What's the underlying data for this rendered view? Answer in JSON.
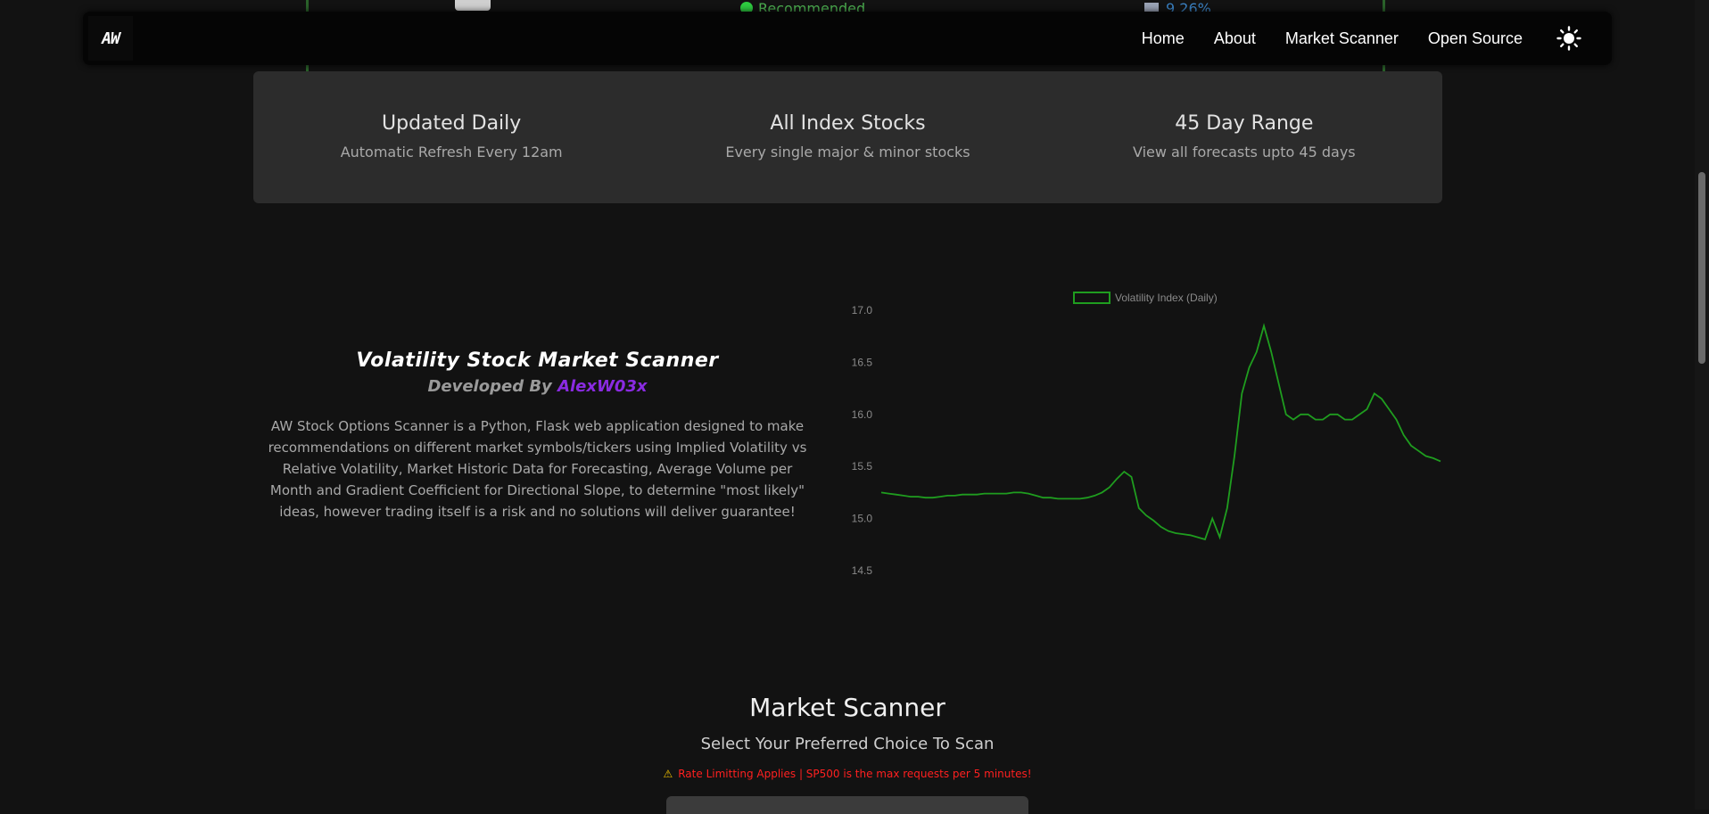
{
  "peek": {
    "recommended_label": "Recommended",
    "percent_value": "9.26%"
  },
  "nav": {
    "logo_text": "AW",
    "links": [
      "Home",
      "About",
      "Market Scanner",
      "Open Source"
    ],
    "theme_toggle_icon": "sun-icon"
  },
  "features": [
    {
      "title": "Updated Daily",
      "subtitle": "Automatic Refresh Every 12am"
    },
    {
      "title": "All Index Stocks",
      "subtitle": "Every single major & minor stocks"
    },
    {
      "title": "45 Day Range",
      "subtitle": "View all forecasts upto 45 days"
    }
  ],
  "about": {
    "title": "Volatility Stock Market Scanner",
    "developed_by": "Developed By",
    "author": "AlexW03x",
    "description": "AW Stock Options Scanner is a Python, Flask web application designed to make recommendations on different market symbols/tickers using Implied Volatility vs Relative Volatility, Market Historic Data for Forecasting, Average Volume per Month and Gradient Coefficient for Directional Slope, to determine \"most likely\" ideas, however trading itself is a risk and no solutions will deliver guarantee!"
  },
  "chart_data": {
    "type": "line",
    "series": [
      {
        "name": "Volatility Index (Daily)",
        "color": "#1f9d1f",
        "values": [
          15.25,
          15.24,
          15.23,
          15.22,
          15.21,
          15.21,
          15.2,
          15.2,
          15.21,
          15.22,
          15.22,
          15.23,
          15.23,
          15.23,
          15.24,
          15.24,
          15.24,
          15.24,
          15.25,
          15.25,
          15.24,
          15.22,
          15.2,
          15.2,
          15.19,
          15.19,
          15.19,
          15.19,
          15.2,
          15.22,
          15.25,
          15.3,
          15.38,
          15.45,
          15.4,
          15.1,
          15.03,
          14.98,
          14.92,
          14.88,
          14.86,
          14.85,
          14.84,
          14.82,
          14.8,
          15.0,
          14.82,
          15.1,
          15.6,
          16.2,
          16.45,
          16.6,
          16.85,
          16.6,
          16.3,
          16.0,
          15.95,
          16.0,
          16.0,
          15.95,
          15.95,
          16.0,
          16.0,
          15.95,
          15.95,
          16.0,
          16.05,
          16.2,
          16.15,
          16.05,
          15.95,
          15.8,
          15.7,
          15.65,
          15.6,
          15.58,
          15.55
        ]
      }
    ],
    "ylim": [
      14.5,
      17.0
    ],
    "yticks": [
      "17.0",
      "16.5",
      "16.0",
      "15.5",
      "15.0",
      "14.5"
    ],
    "legend": "top-center",
    "grid": false
  },
  "scanner": {
    "title": "Market Scanner",
    "subtitle": "Select Your Preferred Choice To Scan",
    "warning": "Rate Limitting Applies | SP500 is the max requests per 5 minutes!"
  }
}
